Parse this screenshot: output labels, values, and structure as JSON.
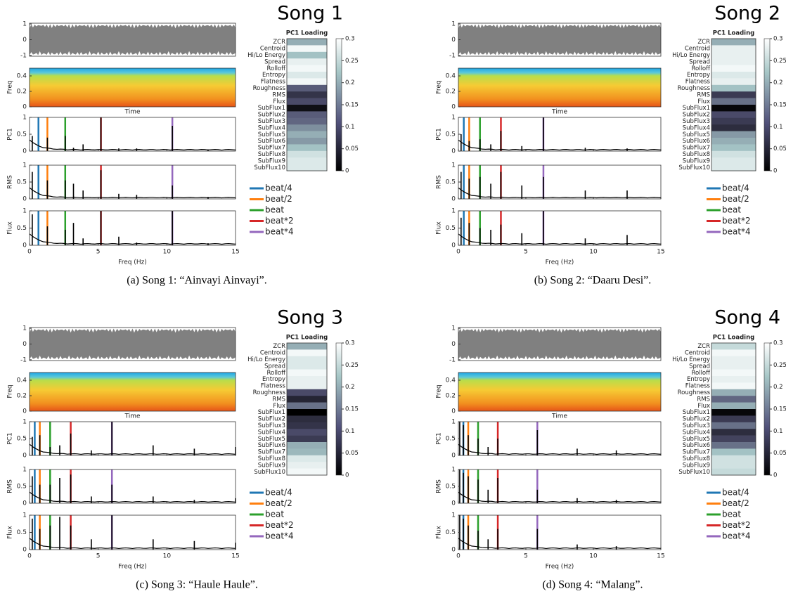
{
  "chart_data": [
    {
      "type": "song-panel",
      "title": "Song 1",
      "caption": "(a) Song 1: “Ainvayi Ainvayi”.",
      "waveform": {
        "ylim": [
          -1.05,
          1.05
        ],
        "yticks": [
          -1,
          0,
          1
        ]
      },
      "spectrogram": {
        "ylabel": "Freq",
        "xlabel": "Time",
        "ylim": [
          0,
          0.5
        ],
        "yticks": [
          0,
          0.2,
          0.4
        ]
      },
      "spectra": {
        "xlim": [
          0,
          15
        ],
        "xticks": [
          0,
          5,
          10,
          15
        ],
        "xlabel": "Freq (Hz)",
        "ylim": [
          0,
          1
        ],
        "yticks": [
          0,
          0.5,
          1
        ],
        "x": [
          0.2,
          1.3,
          2.6,
          3.2,
          3.9,
          5.2,
          6.5,
          7.8,
          10.4,
          13
        ],
        "series": [
          {
            "name": "PC1",
            "values": [
              0.45,
              0.4,
              0.45,
              0.1,
              0.2,
              1,
              0.08,
              0.08,
              0.75,
              0.05
            ]
          },
          {
            "name": "RMS",
            "values": [
              0.8,
              0.55,
              0.55,
              0.45,
              0.25,
              0.85,
              0.15,
              0.12,
              0.4,
              0.06
            ]
          },
          {
            "name": "Flux",
            "values": [
              0.9,
              0.55,
              0.45,
              0.65,
              0.2,
              1,
              0.25,
              0.08,
              1,
              0.06
            ]
          }
        ]
      },
      "beats": [
        {
          "name": "beat/4",
          "color": "#1f77b4",
          "value": 0.65
        },
        {
          "name": "beat/2",
          "color": "#ff7f0e",
          "value": 1.3
        },
        {
          "name": "beat",
          "color": "#2ca02c",
          "value": 2.6
        },
        {
          "name": "beat*2",
          "color": "#d62728",
          "value": 5.2
        },
        {
          "name": "beat*4",
          "color": "#9467bd",
          "value": 10.4
        }
      ],
      "heatmap": {
        "title": "PC1 Loading",
        "categories": [
          "ZCR",
          "Centroid",
          "Hi/Lo Energy",
          "Spread",
          "Rolloff",
          "Entropy",
          "Flatness",
          "Roughness",
          "RMS",
          "Flux",
          "SubFlux1",
          "SubFlux2",
          "SubFlux3",
          "SubFlux4",
          "SubFlux5",
          "SubFlux6",
          "SubFlux7",
          "SubFlux8",
          "SubFlux9",
          "SubFlux10"
        ],
        "values": [
          0.2,
          0.29,
          0.22,
          0.28,
          0.29,
          0.27,
          0.29,
          0.12,
          0.07,
          0.1,
          0.02,
          0.12,
          0.13,
          0.17,
          0.2,
          0.18,
          0.22,
          0.26,
          0.27,
          0.27
        ],
        "clim": [
          0,
          0.3
        ],
        "cticks": [
          0,
          0.05,
          0.1,
          0.15,
          0.2,
          0.25,
          0.3
        ]
      }
    },
    {
      "type": "song-panel",
      "title": "Song 2",
      "caption": "(b) Song 2: “Daaru Desi”.",
      "waveform": {
        "ylim": [
          -1.05,
          1.05
        ],
        "yticks": [
          -1,
          0,
          1
        ]
      },
      "spectrogram": {
        "ylabel": "Freq",
        "xlabel": "Time",
        "ylim": [
          0,
          0.5
        ],
        "yticks": [
          0,
          0.2,
          0.4
        ]
      },
      "spectra": {
        "xlim": [
          0,
          15
        ],
        "xticks": [
          0,
          5,
          10,
          15
        ],
        "xlabel": "Freq (Hz)",
        "ylim": [
          0,
          1
        ],
        "yticks": [
          0,
          0.5,
          1
        ],
        "x": [
          0.2,
          0.8,
          1.6,
          2.4,
          3.15,
          4.7,
          6.3,
          9.4,
          12.5
        ],
        "series": [
          {
            "name": "PC1",
            "values": [
              0.5,
              0.3,
              0.35,
              0.2,
              0.6,
              0.15,
              1,
              0.1,
              0.08
            ]
          },
          {
            "name": "RMS",
            "values": [
              0.8,
              0.6,
              0.65,
              0.45,
              0.8,
              0.4,
              0.65,
              0.25,
              0.25
            ]
          },
          {
            "name": "Flux",
            "values": [
              0.8,
              0.65,
              0.5,
              0.45,
              0.6,
              0.35,
              1,
              0.2,
              0.3
            ]
          }
        ]
      },
      "beats": [
        {
          "name": "beat/4",
          "color": "#1f77b4",
          "value": 0.4
        },
        {
          "name": "beat/2",
          "color": "#ff7f0e",
          "value": 0.8
        },
        {
          "name": "beat",
          "color": "#2ca02c",
          "value": 1.6
        },
        {
          "name": "beat*2",
          "color": "#d62728",
          "value": 3.15
        },
        {
          "name": "beat*4",
          "color": "#9467bd",
          "value": 6.3
        }
      ],
      "heatmap": {
        "title": "PC1 Loading",
        "categories": [
          "ZCR",
          "Centroid",
          "Hi/Lo Energy",
          "Spread",
          "Rolloff",
          "Entropy",
          "Flatness",
          "Roughness",
          "RMS",
          "Flux",
          "SubFlux1",
          "SubFlux2",
          "SubFlux3",
          "SubFlux4",
          "SubFlux5",
          "SubFlux6",
          "SubFlux7",
          "SubFlux8",
          "SubFlux9",
          "SubFlux10"
        ],
        "values": [
          0.2,
          0.28,
          0.28,
          0.28,
          0.29,
          0.27,
          0.28,
          0.22,
          0.08,
          0.14,
          0.01,
          0.1,
          0.08,
          0.06,
          0.18,
          0.2,
          0.22,
          0.26,
          0.27,
          0.27
        ],
        "clim": [
          0,
          0.3
        ],
        "cticks": [
          0,
          0.05,
          0.1,
          0.15,
          0.2,
          0.25,
          0.3
        ]
      }
    },
    {
      "type": "song-panel",
      "title": "Song 3",
      "caption": "(c) Song 3: “Haule Haule”.",
      "waveform": {
        "ylim": [
          -1.05,
          1.05
        ],
        "yticks": [
          -1,
          0,
          1
        ]
      },
      "spectrogram": {
        "ylabel": "Freq",
        "xlabel": "Time",
        "ylim": [
          0,
          0.5
        ],
        "yticks": [
          0,
          0.2,
          0.4
        ]
      },
      "spectra": {
        "xlim": [
          0,
          15
        ],
        "xticks": [
          0,
          5,
          10,
          15
        ],
        "xlabel": "Freq (Hz)",
        "ylim": [
          0,
          1
        ],
        "yticks": [
          0,
          0.5,
          1
        ],
        "x": [
          0.2,
          0.75,
          1.5,
          2.2,
          3.0,
          4.5,
          6.0,
          9.0,
          12.0,
          15
        ],
        "series": [
          {
            "name": "PC1",
            "values": [
              0.55,
              0.6,
              0.25,
              0.3,
              0.65,
              0.15,
              1,
              0.3,
              0.2,
              0.25
            ]
          },
          {
            "name": "RMS",
            "values": [
              0.8,
              0.55,
              0.55,
              0.75,
              0.85,
              0.2,
              0.55,
              0.2,
              0.1,
              0.15
            ]
          },
          {
            "name": "Flux",
            "values": [
              0.9,
              0.6,
              0.7,
              0.95,
              0.7,
              0.3,
              1,
              0.3,
              0.25,
              0.2
            ]
          }
        ]
      },
      "beats": [
        {
          "name": "beat/4",
          "color": "#1f77b4",
          "value": 0.38
        },
        {
          "name": "beat/2",
          "color": "#ff7f0e",
          "value": 0.75
        },
        {
          "name": "beat",
          "color": "#2ca02c",
          "value": 1.5
        },
        {
          "name": "beat*2",
          "color": "#d62728",
          "value": 3.0
        },
        {
          "name": "beat*4",
          "color": "#9467bd",
          "value": 6.0
        }
      ],
      "heatmap": {
        "title": "PC1 Loading",
        "categories": [
          "ZCR",
          "Centroid",
          "Hi/Lo Energy",
          "Spread",
          "Rolloff",
          "Entropy",
          "Flatness",
          "Roughness",
          "RMS",
          "Flux",
          "SubFlux1",
          "SubFlux2",
          "SubFlux3",
          "SubFlux4",
          "SubFlux5",
          "SubFlux6",
          "SubFlux7",
          "SubFlux8",
          "SubFlux9",
          "SubFlux10"
        ],
        "values": [
          0.2,
          0.29,
          0.27,
          0.27,
          0.29,
          0.28,
          0.28,
          0.1,
          0.05,
          0.14,
          0.0,
          0.06,
          0.07,
          0.1,
          0.08,
          0.2,
          0.21,
          0.27,
          0.28,
          0.29
        ],
        "clim": [
          0,
          0.3
        ],
        "cticks": [
          0,
          0.05,
          0.1,
          0.15,
          0.2,
          0.25,
          0.3
        ]
      }
    },
    {
      "type": "song-panel",
      "title": "Song 4",
      "caption": "(d) Song 4: “Malang”.",
      "waveform": {
        "ylim": [
          -1.05,
          1.05
        ],
        "yticks": [
          -1,
          0,
          1
        ]
      },
      "spectrogram": {
        "ylabel": "Freq",
        "xlabel": "Time",
        "ylim": [
          0,
          0.5
        ],
        "yticks": [
          0,
          0.2,
          0.4
        ]
      },
      "spectra": {
        "xlim": [
          0,
          15
        ],
        "xticks": [
          0,
          5,
          10,
          15
        ],
        "xlabel": "Freq (Hz)",
        "ylim": [
          0,
          1
        ],
        "yticks": [
          0,
          0.5,
          1
        ],
        "x": [
          0.1,
          0.37,
          0.73,
          1.46,
          2.2,
          2.92,
          5.85,
          8.8,
          11.7
        ],
        "series": [
          {
            "name": "PC1",
            "values": [
              1,
              0.9,
              0.6,
              0.5,
              0.25,
              0.5,
              0.75,
              0.2,
              0.15
            ]
          },
          {
            "name": "RMS",
            "values": [
              1,
              0.9,
              0.8,
              0.7,
              0.4,
              0.75,
              0.4,
              0.15,
              0.1
            ]
          },
          {
            "name": "Flux",
            "values": [
              1,
              0.9,
              0.7,
              0.55,
              0.3,
              0.6,
              0.6,
              0.15,
              0.1
            ]
          }
        ]
      },
      "beats": [
        {
          "name": "beat/4",
          "color": "#1f77b4",
          "value": 0.37
        },
        {
          "name": "beat/2",
          "color": "#ff7f0e",
          "value": 0.73
        },
        {
          "name": "beat",
          "color": "#2ca02c",
          "value": 1.46
        },
        {
          "name": "beat*2",
          "color": "#d62728",
          "value": 2.92
        },
        {
          "name": "beat*4",
          "color": "#9467bd",
          "value": 5.85
        }
      ],
      "heatmap": {
        "title": "PC1 Loading",
        "categories": [
          "ZCR",
          "Centroid",
          "Hi/Lo Energy",
          "Spread",
          "Rolloff",
          "Entropy",
          "Flatness",
          "Roughness",
          "RMS",
          "Flux",
          "SubFlux1",
          "SubFlux2",
          "SubFlux3",
          "SubFlux4",
          "SubFlux5",
          "SubFlux6",
          "SubFlux7",
          "SubFlux8",
          "SubFlux9",
          "SubFlux10"
        ],
        "values": [
          0.25,
          0.29,
          0.28,
          0.28,
          0.29,
          0.28,
          0.29,
          0.2,
          0.13,
          0.2,
          0.01,
          0.08,
          0.14,
          0.06,
          0.09,
          0.14,
          0.22,
          0.26,
          0.26,
          0.25
        ],
        "clim": [
          0,
          0.3
        ],
        "cticks": [
          0,
          0.05,
          0.1,
          0.15,
          0.2,
          0.25,
          0.3
        ]
      }
    }
  ]
}
